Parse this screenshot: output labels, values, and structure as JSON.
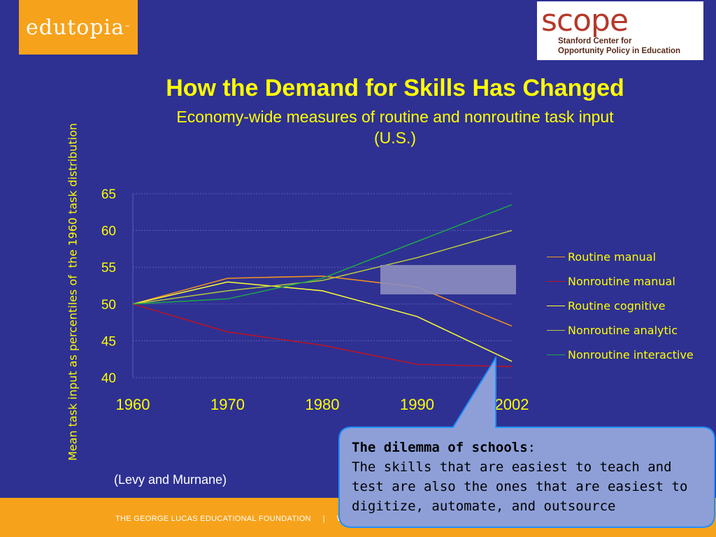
{
  "logos": {
    "edutopia": "edutopia",
    "scope_word": "scope",
    "scope_sub_1": "Stanford Center for",
    "scope_sub_2": "Opportunity Policy in Education"
  },
  "title": "How the Demand for Skills Has Changed",
  "subtitle_1": "Economy-wide measures of routine and nonroutine task input",
  "subtitle_2": "(U.S.)",
  "chart_data": {
    "type": "line",
    "x": [
      "1960",
      "1970",
      "1980",
      "1990",
      "2002"
    ],
    "ylabel": "Mean task input as percentiles of  the 1960 task distribution",
    "ylim": [
      40,
      65
    ],
    "yticks": [
      40,
      45,
      50,
      55,
      60,
      65
    ],
    "grid": true,
    "legend_position": "right",
    "series": [
      {
        "name": "Routine manual",
        "color": "#f7941d",
        "values": [
          50,
          53.5,
          53.8,
          52.3,
          47
        ]
      },
      {
        "name": "Nonroutine manual",
        "color": "#c1121f",
        "values": [
          50,
          46.2,
          44.4,
          41.8,
          41.5
        ]
      },
      {
        "name": "Routine cognitive",
        "color": "#ffff33",
        "values": [
          50,
          53,
          51.8,
          48.3,
          42.2
        ]
      },
      {
        "name": "Nonroutine analytic",
        "color": "#b6c83c",
        "values": [
          50,
          51.8,
          53.2,
          56.3,
          60
        ]
      },
      {
        "name": "Nonroutine interactive",
        "color": "#1fa64a",
        "values": [
          50,
          50.7,
          53.5,
          58.5,
          63.5
        ]
      }
    ],
    "tick_color": "#ffff00",
    "grid_color": "#5a5db0"
  },
  "source": "(Levy and Murnane)",
  "callout": {
    "title": "The dilemma of schools",
    "title_suffix": ":",
    "body": "The skills that are easiest to teach and test are also the ones that are easiest to digitize, automate, and outsource",
    "fill": "#8e9fd8",
    "stroke": "#1e90ff"
  },
  "footer": {
    "text": "THE GEORGE LUCAS EDUCATIONAL FOUNDATION     |     WHAT WORKS IN PUBLIC EDUCATION     |     EDUTOPIA.ORG"
  }
}
